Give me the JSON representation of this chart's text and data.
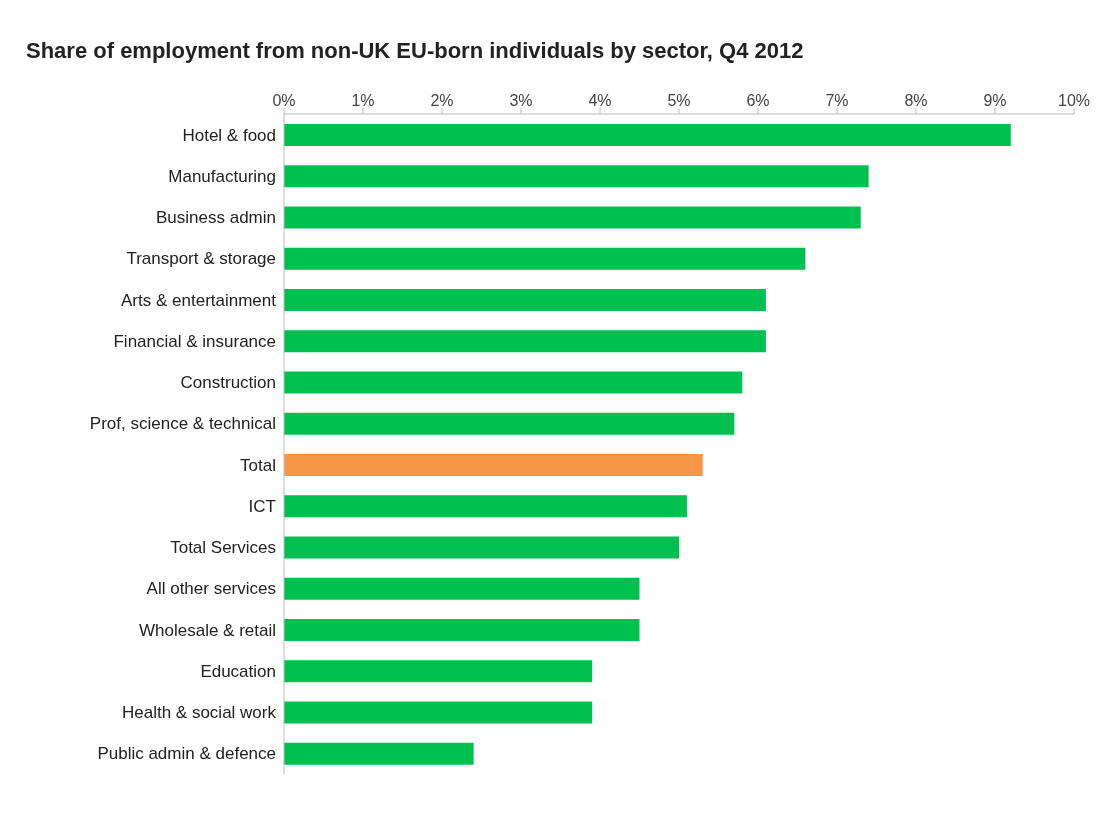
{
  "chart_data": {
    "type": "bar",
    "orientation": "horizontal",
    "title": "Share of employment from non-UK EU-born  individuals by sector, Q4 2012",
    "categories": [
      "Hotel & food",
      "Manufacturing",
      "Business admin",
      "Transport & storage",
      "Arts & entertainment",
      "Financial & insurance",
      "Construction",
      "Prof, science & technical",
      "Total",
      "ICT",
      "Total Services",
      "All other services",
      "Wholesale & retail",
      "Education",
      "Health & social work",
      "Public admin & defence"
    ],
    "values": [
      9.2,
      7.4,
      7.3,
      6.6,
      6.1,
      6.1,
      5.8,
      5.7,
      5.3,
      5.1,
      5.0,
      4.5,
      4.5,
      3.9,
      3.9,
      2.4
    ],
    "colors": [
      "#00c050",
      "#00c050",
      "#00c050",
      "#00c050",
      "#00c050",
      "#00c050",
      "#00c050",
      "#00c050",
      "#f79646",
      "#00c050",
      "#00c050",
      "#00c050",
      "#00c050",
      "#00c050",
      "#00c050",
      "#00c050"
    ],
    "xlim": [
      0,
      10
    ],
    "xticks": [
      {
        "value": 0,
        "label": "0%"
      },
      {
        "value": 1,
        "label": "1%"
      },
      {
        "value": 2,
        "label": "2%"
      },
      {
        "value": 3,
        "label": "3%"
      },
      {
        "value": 4,
        "label": "4%"
      },
      {
        "value": 5,
        "label": "5%"
      },
      {
        "value": 6,
        "label": "6%"
      },
      {
        "value": 7,
        "label": "7%"
      },
      {
        "value": 8,
        "label": "8%"
      },
      {
        "value": 9,
        "label": "9%"
      },
      {
        "value": 10,
        "label": "10%"
      }
    ],
    "grid": false,
    "legend": false
  }
}
